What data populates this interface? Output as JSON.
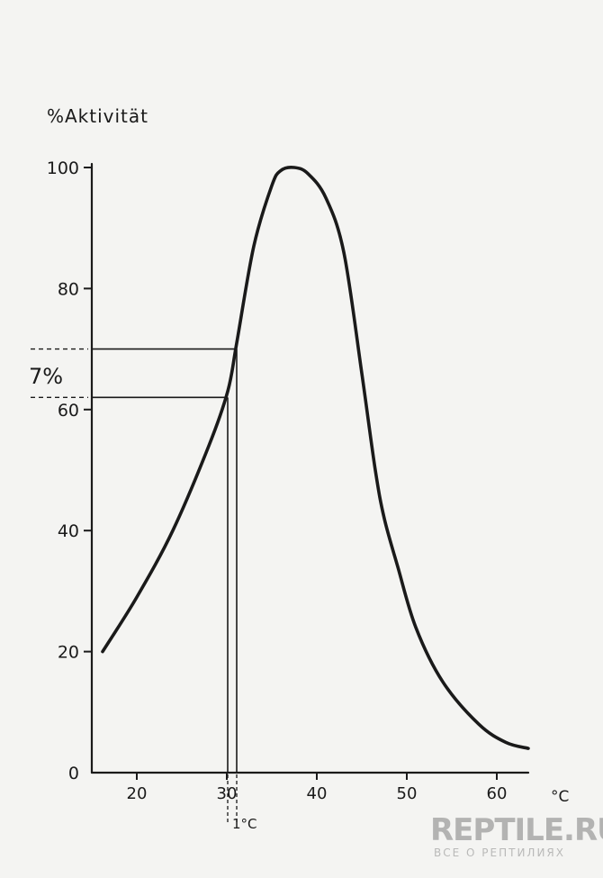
{
  "chart_data": {
    "type": "line",
    "title": "",
    "ylabel": "%Aktivität",
    "xlabel": "°C",
    "xlim": [
      15,
      65
    ],
    "ylim": [
      0,
      100
    ],
    "x_ticks": [
      20,
      30,
      40,
      50,
      60
    ],
    "y_ticks": [
      0,
      20,
      40,
      60,
      80,
      100
    ],
    "x_tick_labels": [
      "20",
      "30",
      "40",
      "50",
      "60"
    ],
    "y_tick_labels": [
      "0",
      "20",
      "40",
      "60",
      "80",
      "100"
    ],
    "grid": false,
    "series": [
      {
        "x": [
          16.2,
          20,
          24,
          28,
          30.1,
          31.1,
          33,
          35,
          36,
          37.5,
          39,
          41,
          43,
          45,
          46.5,
          47.5,
          49,
          51,
          54,
          58,
          61,
          63.5
        ],
        "y": [
          20,
          29,
          40,
          54,
          63,
          71,
          87,
          97,
          99.5,
          100,
          99,
          95,
          86,
          66,
          50,
          42,
          34,
          24,
          15,
          8,
          5,
          4
        ]
      }
    ],
    "annotations": {
      "temp_low_label": "30",
      "temp_high_label": "1°C",
      "temp_low": 30.1,
      "temp_high": 31.1,
      "activity_low": 62,
      "activity_high": 70,
      "difference_label": "7%"
    }
  },
  "watermark": {
    "title": "REPTILE.RU",
    "subtitle": "ВСЕ О РЕПТИЛИЯХ"
  }
}
